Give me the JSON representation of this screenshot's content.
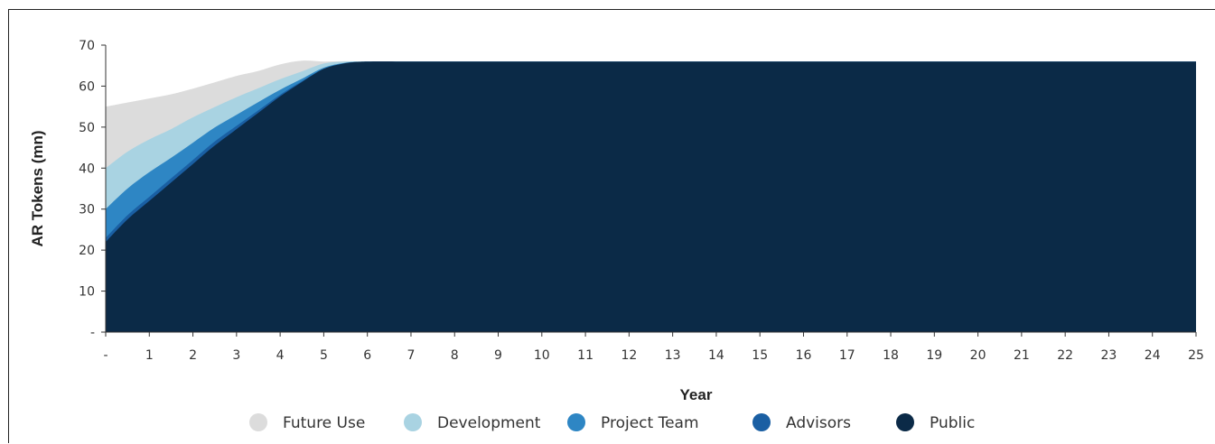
{
  "chart_data": {
    "type": "area",
    "stacked": true,
    "title": "",
    "xlabel": "Year",
    "ylabel": "AR Tokens (mn)",
    "ylim": [
      0,
      70
    ],
    "xlim": [
      0,
      25
    ],
    "y_ticks": [
      0,
      10,
      20,
      30,
      40,
      50,
      60,
      70
    ],
    "y_tick_labels": [
      "-",
      "10",
      "20",
      "30",
      "40",
      "50",
      "60",
      "70"
    ],
    "x_ticks": [
      0,
      1,
      2,
      3,
      4,
      5,
      6,
      7,
      8,
      9,
      10,
      11,
      12,
      13,
      14,
      15,
      16,
      17,
      18,
      19,
      20,
      21,
      22,
      23,
      24,
      25
    ],
    "x_tick_labels": [
      "-",
      "1",
      "2",
      "3",
      "4",
      "5",
      "6",
      "7",
      "8",
      "9",
      "10",
      "11",
      "12",
      "13",
      "14",
      "15",
      "16",
      "17",
      "18",
      "19",
      "20",
      "21",
      "22",
      "23",
      "24",
      "25"
    ],
    "grid": false,
    "legend_position": "bottom",
    "x": [
      0,
      0.5,
      1,
      1.5,
      2,
      2.5,
      3,
      3.5,
      4,
      4.5,
      5,
      5.5,
      6,
      7,
      8,
      10,
      15,
      20,
      25
    ],
    "series": [
      {
        "name": "Public",
        "color": "#0b2a47",
        "values": [
          22,
          27.5,
          32,
          36.5,
          41,
          45.5,
          49.5,
          53.5,
          57.5,
          61,
          64.2,
          65.6,
          66,
          66,
          66,
          66,
          66,
          66,
          66
        ]
      },
      {
        "name": "Advisors",
        "color": "#1a5fa3",
        "values": [
          1,
          1,
          1,
          1,
          1,
          1,
          0.8,
          0.6,
          0.4,
          0.2,
          0,
          0,
          0,
          0,
          0,
          0,
          0,
          0,
          0
        ]
      },
      {
        "name": "Project Team",
        "color": "#2e86c4",
        "values": [
          7,
          6.5,
          6,
          5,
          4.2,
          3.4,
          2.7,
          2,
          1.2,
          0.6,
          0.3,
          0.1,
          0,
          0,
          0,
          0,
          0,
          0,
          0
        ]
      },
      {
        "name": "Development",
        "color": "#a9d3e2",
        "values": [
          10,
          9,
          8,
          7,
          6.2,
          5,
          4.3,
          3.4,
          2.6,
          1.8,
          1,
          0.3,
          0,
          0,
          0,
          0,
          0,
          0,
          0
        ]
      },
      {
        "name": "Future Use",
        "color": "#dcdcdc",
        "values": [
          15,
          12,
          10,
          8.5,
          7,
          6,
          5.2,
          4.2,
          3.6,
          2.6,
          0.5,
          0.1,
          0,
          0,
          0,
          0,
          0,
          0,
          0
        ]
      }
    ],
    "legend_order": [
      "Future Use",
      "Development",
      "Project Team",
      "Advisors",
      "Public"
    ]
  }
}
